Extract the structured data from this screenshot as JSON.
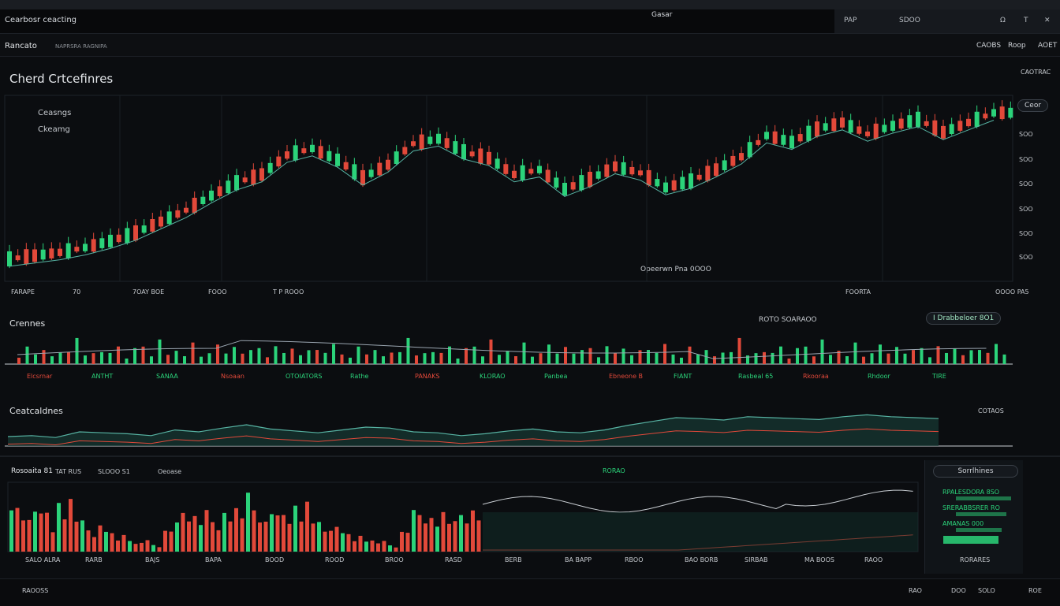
{
  "window": {
    "app_title": "Cearbosr ceacting",
    "center_title": "Gasar",
    "controls": [
      "PAP",
      "SDOO",
      "Ω",
      "T",
      "✕"
    ]
  },
  "subbar": {
    "left_label": "Rancato",
    "left_sub": "NAPRSRA RAGNIPA",
    "right_items": [
      "CAOBS",
      "Roop",
      "AOET"
    ]
  },
  "main_chart": {
    "title": "Cherd Crtcefinres",
    "legend_top": "Ceasngs",
    "legend_bottom": "Ckeamg",
    "top_right_label": "CAOTRAC",
    "pill_label": "Ceor",
    "y_ticks": [
      "SOO",
      "SOO",
      "SOO",
      "SOO",
      "SOO",
      "SOO"
    ],
    "x_ticks": [
      "FARAPE",
      "70",
      "7OAY BOE",
      "FOOO",
      "T P ROOO",
      "FOORTA",
      "OOOO PA5"
    ],
    "center_annotation": "Opeerwn Pna 0OOO"
  },
  "volume_chart": {
    "title": "Crennes",
    "center_label": "ROTO SOARAOO",
    "pill_label": "I Drabbeloer 8O1",
    "labels": [
      "Elcsrnar",
      "ANTHT",
      "SANAA",
      "Nsoaan",
      "OTOIATORS",
      "Rathe",
      "PANAKS",
      "KLORAO",
      "Panbea",
      "Ebneone B",
      "FIANT",
      "Rasbeal 65",
      "Rkooraa",
      "Rhdoor",
      "TIRE"
    ]
  },
  "indicator_chart": {
    "title": "Ceatcaldnes",
    "right_label": "COTAOS"
  },
  "bottom_chart": {
    "title": "Rosoaita 81",
    "title_sub": "TAT RUS",
    "title_sub2": "SLOOO S1",
    "title_sub3": "Oeoase",
    "center_label": "RORAO",
    "x_ticks": [
      "SALO ALRA",
      "RARB",
      "BAJS",
      "BAPA",
      "BOOD",
      "ROOD",
      "BROO",
      "RASD",
      "BERB",
      "BA BAPP",
      "RBOO",
      "BAO BORB",
      "SIRBAB",
      "MA BOOS",
      "RAOO"
    ],
    "side_panel": {
      "pill": "Sorrlhines",
      "rows": [
        "RPALESDORA 8SO",
        "SRERABBSRER RO",
        "AMANAS 000",
        "RORARES"
      ]
    }
  },
  "footer": {
    "left": "RAOOSS",
    "right_items": [
      "RAO",
      "DOO",
      "SOLO",
      "ROE"
    ]
  },
  "colors": {
    "background": "#0b0d10",
    "bull": "#2bd37a",
    "bear": "#e2493a",
    "line": "#57b3a3",
    "accent": "#3fe0a8"
  },
  "chart_data": [
    {
      "type": "line",
      "name": "main-price",
      "title": "Cherd Crtcefinres",
      "x": [
        0,
        1,
        2,
        3,
        4,
        5,
        6,
        7,
        8,
        9,
        10,
        11,
        12,
        13,
        14,
        15,
        16,
        17,
        18,
        19,
        20,
        21,
        22,
        23,
        24,
        25,
        26,
        27,
        28,
        29,
        30,
        31,
        32,
        33,
        34,
        35,
        36,
        37,
        38,
        39
      ],
      "values": [
        8,
        10,
        12,
        15,
        19,
        24,
        31,
        38,
        47,
        55,
        60,
        72,
        76,
        69,
        58,
        66,
        79,
        82,
        74,
        70,
        60,
        63,
        51,
        57,
        65,
        61,
        52,
        56,
        63,
        71,
        84,
        80,
        88,
        92,
        85,
        90,
        94,
        86,
        92,
        98
      ],
      "ylim": [
        0,
        100
      ]
    },
    {
      "type": "bar",
      "name": "volume",
      "values": [
        30,
        52,
        34,
        61,
        22,
        38,
        48,
        70,
        27,
        41,
        56,
        33,
        62,
        24,
        45,
        58,
        31,
        66,
        29,
        50,
        37,
        64,
        26,
        47,
        55,
        35,
        69,
        28,
        44,
        60,
        32,
        53,
        39,
        67,
        25,
        46,
        57,
        30,
        63,
        36
      ],
      "ylim": [
        0,
        100
      ]
    },
    {
      "type": "area",
      "name": "indicator",
      "values": [
        20,
        22,
        18,
        30,
        28,
        26,
        22,
        34,
        30,
        38,
        45,
        36,
        32,
        28,
        34,
        40,
        38,
        30,
        28,
        22,
        26,
        32,
        36,
        30,
        28,
        34,
        44,
        52,
        60,
        58,
        55,
        62,
        60,
        58,
        56,
        62,
        66,
        62,
        60,
        58
      ],
      "ylim": [
        0,
        100
      ]
    },
    {
      "type": "bar",
      "name": "bottom",
      "values": [
        85,
        70,
        60,
        48,
        72,
        55,
        66,
        40,
        78,
        62,
        80,
        54,
        45,
        36,
        30,
        42,
        38,
        28,
        20,
        24,
        18,
        16,
        14,
        22,
        10,
        8,
        30,
        34,
        60,
        62,
        58,
        54,
        48,
        60,
        50,
        44,
        62,
        58,
        66,
        60
      ],
      "ylim": [
        0,
        100
      ]
    }
  ]
}
